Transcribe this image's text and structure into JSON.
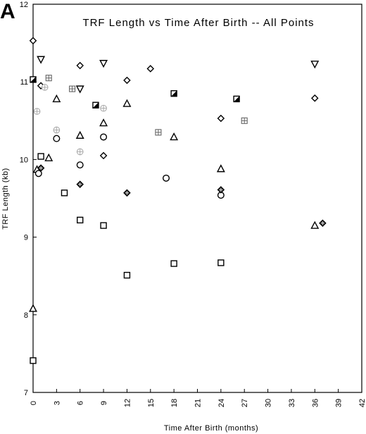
{
  "panel_label": "A",
  "chart_data": {
    "type": "scatter",
    "title": "TRF  Length  vs  Time  After  Birth  --  All  Points",
    "xlabel": "Time  After  Birth  (months)",
    "ylabel": "TRF Length (kb)",
    "xlim": [
      0,
      42
    ],
    "ylim": [
      7,
      12
    ],
    "x_ticks": [
      0,
      3,
      6,
      9,
      12,
      15,
      18,
      21,
      24,
      27,
      30,
      33,
      36,
      39,
      42
    ],
    "y_ticks": [
      7,
      8,
      9,
      10,
      11,
      12
    ],
    "grid": false,
    "legend": "none",
    "colors": {
      "primary": "#000000",
      "light": "#aaaaaa",
      "medium": "#666666"
    },
    "series": [
      {
        "marker": "diamond-open",
        "color": "#000000",
        "x": [
          0,
          1,
          6,
          9,
          12,
          15,
          24,
          36
        ],
        "y": [
          11.53,
          10.95,
          11.21,
          10.05,
          11.02,
          11.17,
          10.53,
          10.79
        ]
      },
      {
        "marker": "triangle-down-open",
        "color": "#000000",
        "x": [
          1,
          6,
          9,
          36
        ],
        "y": [
          11.29,
          10.91,
          11.24,
          11.23
        ]
      },
      {
        "marker": "square-half",
        "color": "#000000",
        "x": [
          0,
          8,
          18,
          26
        ],
        "y": [
          11.03,
          10.7,
          10.85,
          10.78
        ]
      },
      {
        "marker": "square-cross",
        "color": "#666666",
        "x": [
          2,
          5,
          16,
          27
        ],
        "y": [
          11.05,
          10.91,
          10.35,
          10.5
        ]
      },
      {
        "marker": "circle-cross",
        "color": "#aaaaaa",
        "x": [
          0.5,
          1.5,
          3,
          6,
          9
        ],
        "y": [
          10.62,
          10.93,
          10.38,
          10.1,
          10.66
        ]
      },
      {
        "marker": "triangle-open",
        "color": "#000000",
        "x": [
          0,
          0.5,
          2,
          3,
          6,
          9,
          12,
          18,
          24,
          36
        ],
        "y": [
          8.08,
          9.87,
          10.02,
          10.78,
          10.31,
          10.47,
          10.72,
          10.29,
          9.88,
          9.15
        ]
      },
      {
        "marker": "circle-open",
        "color": "#000000",
        "x": [
          0.7,
          3,
          6,
          9,
          17,
          24
        ],
        "y": [
          9.82,
          10.27,
          9.93,
          10.29,
          9.76,
          9.54
        ]
      },
      {
        "marker": "square-open",
        "color": "#000000",
        "x": [
          0,
          1,
          4,
          6,
          9,
          12,
          18,
          24
        ],
        "y": [
          7.41,
          10.04,
          9.57,
          9.22,
          9.15,
          8.51,
          8.66,
          8.67
        ]
      },
      {
        "marker": "diamond-filled",
        "color": "#000000",
        "x": [
          1,
          6,
          12,
          24,
          37
        ],
        "y": [
          9.89,
          9.68,
          9.57,
          9.61,
          9.18
        ]
      }
    ]
  }
}
